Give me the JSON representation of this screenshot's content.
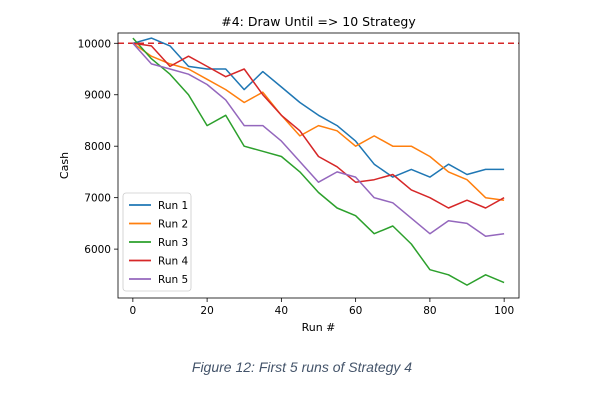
{
  "caption": "Figure 12: First 5 runs of Strategy 4",
  "chart_data": {
    "type": "line",
    "title": "#4: Draw Until => 10 Strategy",
    "xlabel": "Run #",
    "ylabel": "Cash",
    "xlim": [
      -4,
      104
    ],
    "ylim": [
      5050,
      10200
    ],
    "xticks": [
      0,
      20,
      40,
      60,
      80,
      100
    ],
    "yticks": [
      6000,
      7000,
      8000,
      9000,
      10000
    ],
    "grid": false,
    "legend": "lower-left",
    "reference_line": {
      "y": 10000,
      "color": "#d62728",
      "style": "dashed"
    },
    "x": [
      0,
      5,
      10,
      15,
      20,
      25,
      30,
      35,
      40,
      45,
      50,
      55,
      60,
      65,
      70,
      75,
      80,
      85,
      90,
      95,
      100
    ],
    "series": [
      {
        "name": "Run 1",
        "color": "#1f77b4",
        "values": [
          10000,
          10100,
          9950,
          9550,
          9500,
          9500,
          9100,
          9450,
          9150,
          8850,
          8600,
          8400,
          8100,
          7650,
          7400,
          7550,
          7400,
          7650,
          7450,
          7550,
          7550
        ]
      },
      {
        "name": "Run 2",
        "color": "#ff7f0e",
        "values": [
          10000,
          9750,
          9600,
          9500,
          9300,
          9100,
          8850,
          9050,
          8600,
          8200,
          8400,
          8300,
          8000,
          8200,
          8000,
          8000,
          7800,
          7500,
          7350,
          7000,
          6950
        ]
      },
      {
        "name": "Run 3",
        "color": "#2ca02c",
        "values": [
          10100,
          9700,
          9400,
          9000,
          8400,
          8600,
          8000,
          7900,
          7800,
          7500,
          7100,
          6800,
          6650,
          6300,
          6450,
          6100,
          5600,
          5500,
          5300,
          5500,
          5350
        ]
      },
      {
        "name": "Run 4",
        "color": "#d62728",
        "values": [
          10000,
          9950,
          9550,
          9750,
          9550,
          9350,
          9500,
          9000,
          8600,
          8300,
          7800,
          7600,
          7300,
          7350,
          7450,
          7150,
          7000,
          6800,
          6950,
          6800,
          7000
        ]
      },
      {
        "name": "Run 5",
        "color": "#9467bd",
        "values": [
          10000,
          9600,
          9500,
          9400,
          9200,
          8900,
          8400,
          8400,
          8100,
          7700,
          7300,
          7500,
          7400,
          7000,
          6900,
          6600,
          6300,
          6550,
          6500,
          6250,
          6300
        ]
      }
    ]
  }
}
